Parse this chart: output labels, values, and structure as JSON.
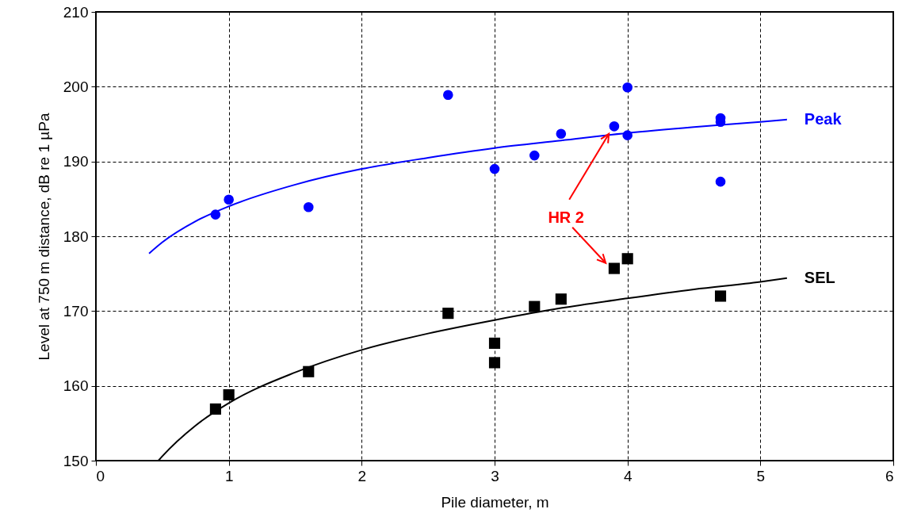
{
  "chart_data": {
    "type": "scatter",
    "xlabel": "Pile diameter, m",
    "ylabel": "Level at 750 m distance, dB re 1 µPa",
    "xlim": [
      0,
      6
    ],
    "xticks": [
      0,
      1,
      2,
      3,
      4,
      5,
      6
    ],
    "ylim": [
      150,
      210
    ],
    "yticks": [
      150,
      160,
      170,
      180,
      190,
      200,
      210
    ],
    "grid": true,
    "series": [
      {
        "color": "#0000ff",
        "marker": "circle",
        "x": [
          0.9,
          1.0,
          1.6,
          2.65,
          3.0,
          3.3,
          3.5,
          3.9,
          4.0,
          4.0,
          4.7,
          4.7,
          4.7
        ],
        "values": [
          182.9,
          184.9,
          183.9,
          198.9,
          189.0,
          190.8,
          193.7,
          194.7,
          199.9,
          193.5,
          195.8,
          195.3,
          187.3
        ]
      },
      {
        "type": "line",
        "name": "Peak",
        "color": "#0000ff",
        "marker": "none",
        "x": [
          0.4,
          0.5,
          0.75,
          1,
          1.5,
          2,
          2.5,
          3,
          3.5,
          4,
          4.5,
          5,
          5.2
        ],
        "values": [
          177.7,
          179.2,
          182.0,
          184.0,
          186.9,
          189.0,
          190.5,
          191.8,
          192.8,
          193.8,
          194.6,
          195.3,
          195.6
        ]
      },
      {
        "color": "#000000",
        "marker": "square",
        "x": [
          0.9,
          1.0,
          1.6,
          2.65,
          3.0,
          3.0,
          3.3,
          3.5,
          3.9,
          4.0,
          4.7
        ],
        "values": [
          156.9,
          158.8,
          161.9,
          169.7,
          165.7,
          163.1,
          170.6,
          171.6,
          175.7,
          177.0,
          172.0
        ]
      },
      {
        "type": "line",
        "name": "SEL",
        "color": "#000000",
        "marker": "none",
        "x": [
          0.47,
          0.5,
          0.75,
          1,
          1.5,
          2,
          2.5,
          3,
          3.5,
          4,
          4.5,
          5,
          5.2
        ],
        "values": [
          150.0,
          150.6,
          154.7,
          157.7,
          161.8,
          164.8,
          167.0,
          168.8,
          170.4,
          171.7,
          172.9,
          173.9,
          174.4
        ]
      }
    ],
    "annotations": [
      {
        "text": "HR 2",
        "x": 3.86,
        "y": 193.7
      }
    ]
  }
}
